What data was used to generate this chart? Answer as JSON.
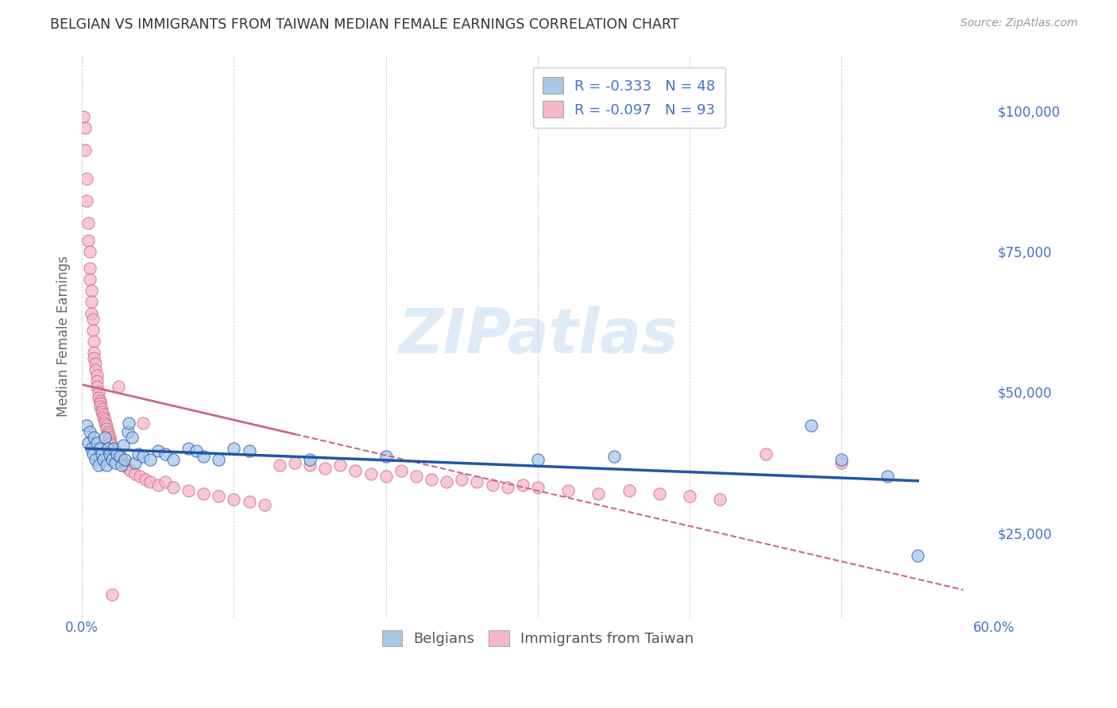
{
  "title": "BELGIAN VS IMMIGRANTS FROM TAIWAN MEDIAN FEMALE EARNINGS CORRELATION CHART",
  "source": "Source: ZipAtlas.com",
  "ylabel": "Median Female Earnings",
  "watermark": "ZIPatlas",
  "xlim": [
    0.0,
    0.6
  ],
  "ylim": [
    10000,
    110000
  ],
  "yticks": [
    25000,
    50000,
    75000,
    100000
  ],
  "ytick_labels": [
    "$25,000",
    "$50,000",
    "$75,000",
    "$100,000"
  ],
  "xticks": [
    0.0,
    0.1,
    0.2,
    0.3,
    0.4,
    0.5,
    0.6
  ],
  "legend_R_blue": "-0.333",
  "legend_N_blue": "48",
  "legend_R_pink": "-0.097",
  "legend_N_pink": "93",
  "blue_color": "#a8c8e8",
  "pink_color": "#f4b8c8",
  "line_blue_color": "#2255aa",
  "line_pink_color": "#cc6688",
  "background_color": "#ffffff",
  "grid_color": "#cccccc",
  "title_color": "#333333",
  "axis_color": "#4472c4",
  "ylabel_color": "#666666",
  "blue_scatter": [
    [
      0.003,
      44000
    ],
    [
      0.004,
      41000
    ],
    [
      0.005,
      43000
    ],
    [
      0.006,
      40000
    ],
    [
      0.007,
      39000
    ],
    [
      0.008,
      42000
    ],
    [
      0.009,
      38000
    ],
    [
      0.01,
      41000
    ],
    [
      0.011,
      37000
    ],
    [
      0.012,
      40000
    ],
    [
      0.013,
      39000
    ],
    [
      0.014,
      38000
    ],
    [
      0.015,
      42000
    ],
    [
      0.016,
      37000
    ],
    [
      0.017,
      40000
    ],
    [
      0.018,
      39000
    ],
    [
      0.02,
      38000
    ],
    [
      0.021,
      40000
    ],
    [
      0.022,
      37500
    ],
    [
      0.023,
      39000
    ],
    [
      0.025,
      38500
    ],
    [
      0.026,
      37000
    ],
    [
      0.027,
      40500
    ],
    [
      0.028,
      38000
    ],
    [
      0.03,
      43000
    ],
    [
      0.031,
      44500
    ],
    [
      0.033,
      42000
    ],
    [
      0.035,
      37500
    ],
    [
      0.037,
      39000
    ],
    [
      0.04,
      38500
    ],
    [
      0.045,
      38000
    ],
    [
      0.05,
      39500
    ],
    [
      0.055,
      39000
    ],
    [
      0.06,
      38000
    ],
    [
      0.07,
      40000
    ],
    [
      0.075,
      39500
    ],
    [
      0.08,
      38500
    ],
    [
      0.09,
      38000
    ],
    [
      0.1,
      40000
    ],
    [
      0.11,
      39500
    ],
    [
      0.15,
      38000
    ],
    [
      0.2,
      38500
    ],
    [
      0.3,
      38000
    ],
    [
      0.35,
      38500
    ],
    [
      0.48,
      44000
    ],
    [
      0.5,
      38000
    ],
    [
      0.53,
      35000
    ],
    [
      0.55,
      21000
    ]
  ],
  "pink_scatter": [
    [
      0.001,
      99000
    ],
    [
      0.002,
      97000
    ],
    [
      0.002,
      93000
    ],
    [
      0.003,
      88000
    ],
    [
      0.003,
      84000
    ],
    [
      0.004,
      80000
    ],
    [
      0.004,
      77000
    ],
    [
      0.005,
      75000
    ],
    [
      0.005,
      72000
    ],
    [
      0.005,
      70000
    ],
    [
      0.006,
      68000
    ],
    [
      0.006,
      66000
    ],
    [
      0.006,
      64000
    ],
    [
      0.007,
      63000
    ],
    [
      0.007,
      61000
    ],
    [
      0.008,
      59000
    ],
    [
      0.008,
      57000
    ],
    [
      0.008,
      56000
    ],
    [
      0.009,
      55000
    ],
    [
      0.009,
      54000
    ],
    [
      0.01,
      53000
    ],
    [
      0.01,
      52000
    ],
    [
      0.01,
      51000
    ],
    [
      0.011,
      50000
    ],
    [
      0.011,
      49000
    ],
    [
      0.012,
      48500
    ],
    [
      0.012,
      48000
    ],
    [
      0.012,
      47500
    ],
    [
      0.013,
      47000
    ],
    [
      0.013,
      46500
    ],
    [
      0.014,
      46000
    ],
    [
      0.014,
      45500
    ],
    [
      0.015,
      45000
    ],
    [
      0.015,
      44500
    ],
    [
      0.016,
      44000
    ],
    [
      0.016,
      43500
    ],
    [
      0.017,
      43000
    ],
    [
      0.017,
      42500
    ],
    [
      0.018,
      42000
    ],
    [
      0.018,
      41500
    ],
    [
      0.019,
      41000
    ],
    [
      0.02,
      40500
    ],
    [
      0.021,
      40000
    ],
    [
      0.022,
      39500
    ],
    [
      0.023,
      39000
    ],
    [
      0.024,
      51000
    ],
    [
      0.025,
      38500
    ],
    [
      0.026,
      38000
    ],
    [
      0.027,
      37500
    ],
    [
      0.028,
      37000
    ],
    [
      0.03,
      36500
    ],
    [
      0.032,
      36000
    ],
    [
      0.035,
      35500
    ],
    [
      0.038,
      35000
    ],
    [
      0.04,
      44500
    ],
    [
      0.042,
      34500
    ],
    [
      0.045,
      34000
    ],
    [
      0.05,
      33500
    ],
    [
      0.055,
      34000
    ],
    [
      0.06,
      33000
    ],
    [
      0.07,
      32500
    ],
    [
      0.08,
      32000
    ],
    [
      0.09,
      31500
    ],
    [
      0.1,
      31000
    ],
    [
      0.02,
      14000
    ],
    [
      0.11,
      30500
    ],
    [
      0.12,
      30000
    ],
    [
      0.13,
      37000
    ],
    [
      0.14,
      37500
    ],
    [
      0.15,
      37000
    ],
    [
      0.16,
      36500
    ],
    [
      0.17,
      37000
    ],
    [
      0.18,
      36000
    ],
    [
      0.19,
      35500
    ],
    [
      0.2,
      35000
    ],
    [
      0.21,
      36000
    ],
    [
      0.22,
      35000
    ],
    [
      0.23,
      34500
    ],
    [
      0.24,
      34000
    ],
    [
      0.25,
      34500
    ],
    [
      0.26,
      34000
    ],
    [
      0.27,
      33500
    ],
    [
      0.28,
      33000
    ],
    [
      0.29,
      33500
    ],
    [
      0.3,
      33000
    ],
    [
      0.32,
      32500
    ],
    [
      0.34,
      32000
    ],
    [
      0.36,
      32500
    ],
    [
      0.38,
      32000
    ],
    [
      0.4,
      31500
    ],
    [
      0.42,
      31000
    ],
    [
      0.45,
      39000
    ],
    [
      0.5,
      37500
    ]
  ]
}
